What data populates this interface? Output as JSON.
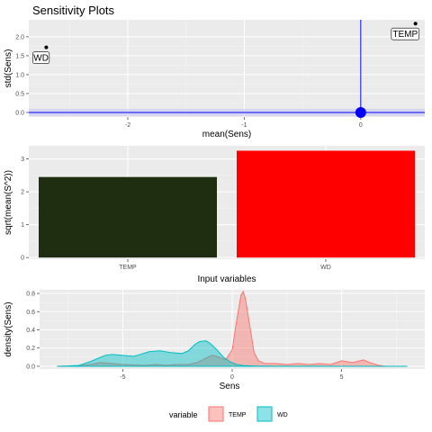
{
  "title": "Sensitivity Plots",
  "colors": {
    "TEMP": "#F8766D",
    "WD": "#00BFC4",
    "bar_TEMP": "#1f2e10",
    "bar_WD": "#ff0000",
    "ref": "#0000ff"
  },
  "chart_data": [
    {
      "type": "scatter",
      "xlabel": "mean(Sens)",
      "ylabel": "std(Sens)",
      "xlim": [
        -2.85,
        0.55
      ],
      "ylim": [
        -0.12,
        2.45
      ],
      "x_ticks": [
        -2,
        -1,
        0
      ],
      "y_ticks": [
        0.0,
        0.5,
        1.0,
        1.5,
        2.0
      ],
      "y_tick_labels": [
        "0.0",
        "0.5",
        "1.0",
        "1.5",
        "2.0"
      ],
      "points": [
        {
          "label": "WD",
          "x": -2.7,
          "y": 1.72
        },
        {
          "label": "TEMP",
          "x": 0.47,
          "y": 2.35
        }
      ],
      "reference": {
        "vline_x": 0,
        "hline_y": 0,
        "marker": [
          0,
          0
        ]
      }
    },
    {
      "type": "bar",
      "xlabel": "Input variables",
      "ylabel": "sqrt(mean(S^2))",
      "categories": [
        "TEMP",
        "WD"
      ],
      "values": [
        2.45,
        3.25
      ],
      "ylim": [
        -0.05,
        3.4
      ],
      "y_ticks": [
        0,
        1,
        2,
        3
      ]
    },
    {
      "type": "area",
      "xlabel": "Sens",
      "ylabel": "density(Sens)",
      "xlim": [
        -8.8,
        8.8
      ],
      "ylim": [
        -0.03,
        0.84
      ],
      "x_ticks": [
        -5,
        0,
        5
      ],
      "y_ticks": [
        0.0,
        0.2,
        0.4,
        0.6,
        0.8
      ],
      "y_tick_labels": [
        "0.0",
        "0.2",
        "0.4",
        "0.6",
        "0.8"
      ],
      "series": [
        {
          "name": "TEMP",
          "x": [
            -8,
            -7,
            -6.5,
            -6,
            -5.5,
            -5,
            -4.5,
            -4,
            -3.5,
            -3,
            -2.5,
            -2,
            -1.6,
            -1.2,
            -0.9,
            -0.6,
            -0.3,
            0,
            0.2,
            0.4,
            0.5,
            0.6,
            0.8,
            1.0,
            1.2,
            1.5,
            2,
            2.5,
            3,
            3.5,
            4,
            4.5,
            5,
            5.5,
            6,
            6.3,
            6.7,
            7
          ],
          "values": [
            0.0,
            0.005,
            0.02,
            0.04,
            0.03,
            0.02,
            0.015,
            0.01,
            0.02,
            0.01,
            0.02,
            0.02,
            0.04,
            0.09,
            0.12,
            0.1,
            0.07,
            0.18,
            0.5,
            0.78,
            0.82,
            0.75,
            0.45,
            0.15,
            0.06,
            0.03,
            0.03,
            0.02,
            0.03,
            0.02,
            0.03,
            0.02,
            0.06,
            0.04,
            0.07,
            0.04,
            0.01,
            0.0
          ]
        },
        {
          "name": "WD",
          "x": [
            -8,
            -7.5,
            -7,
            -6.5,
            -6.2,
            -5.8,
            -5.5,
            -5,
            -4.5,
            -4.2,
            -3.8,
            -3.3,
            -2.8,
            -2.3,
            -2,
            -1.7,
            -1.5,
            -1.2,
            -1.0,
            -0.7,
            -0.4,
            -0.1,
            0.2,
            0.5,
            1,
            2,
            3,
            4,
            5,
            6,
            7,
            8
          ],
          "values": [
            0.0,
            0.003,
            0.01,
            0.05,
            0.08,
            0.12,
            0.13,
            0.12,
            0.11,
            0.13,
            0.16,
            0.17,
            0.15,
            0.14,
            0.17,
            0.24,
            0.27,
            0.28,
            0.25,
            0.18,
            0.1,
            0.05,
            0.02,
            0.008,
            0.003,
            0.001,
            0.001,
            0.001,
            0.0,
            0.0,
            0.0,
            0.0
          ]
        }
      ]
    }
  ],
  "legend": {
    "title": "variable",
    "items": [
      "TEMP",
      "WD"
    ]
  }
}
